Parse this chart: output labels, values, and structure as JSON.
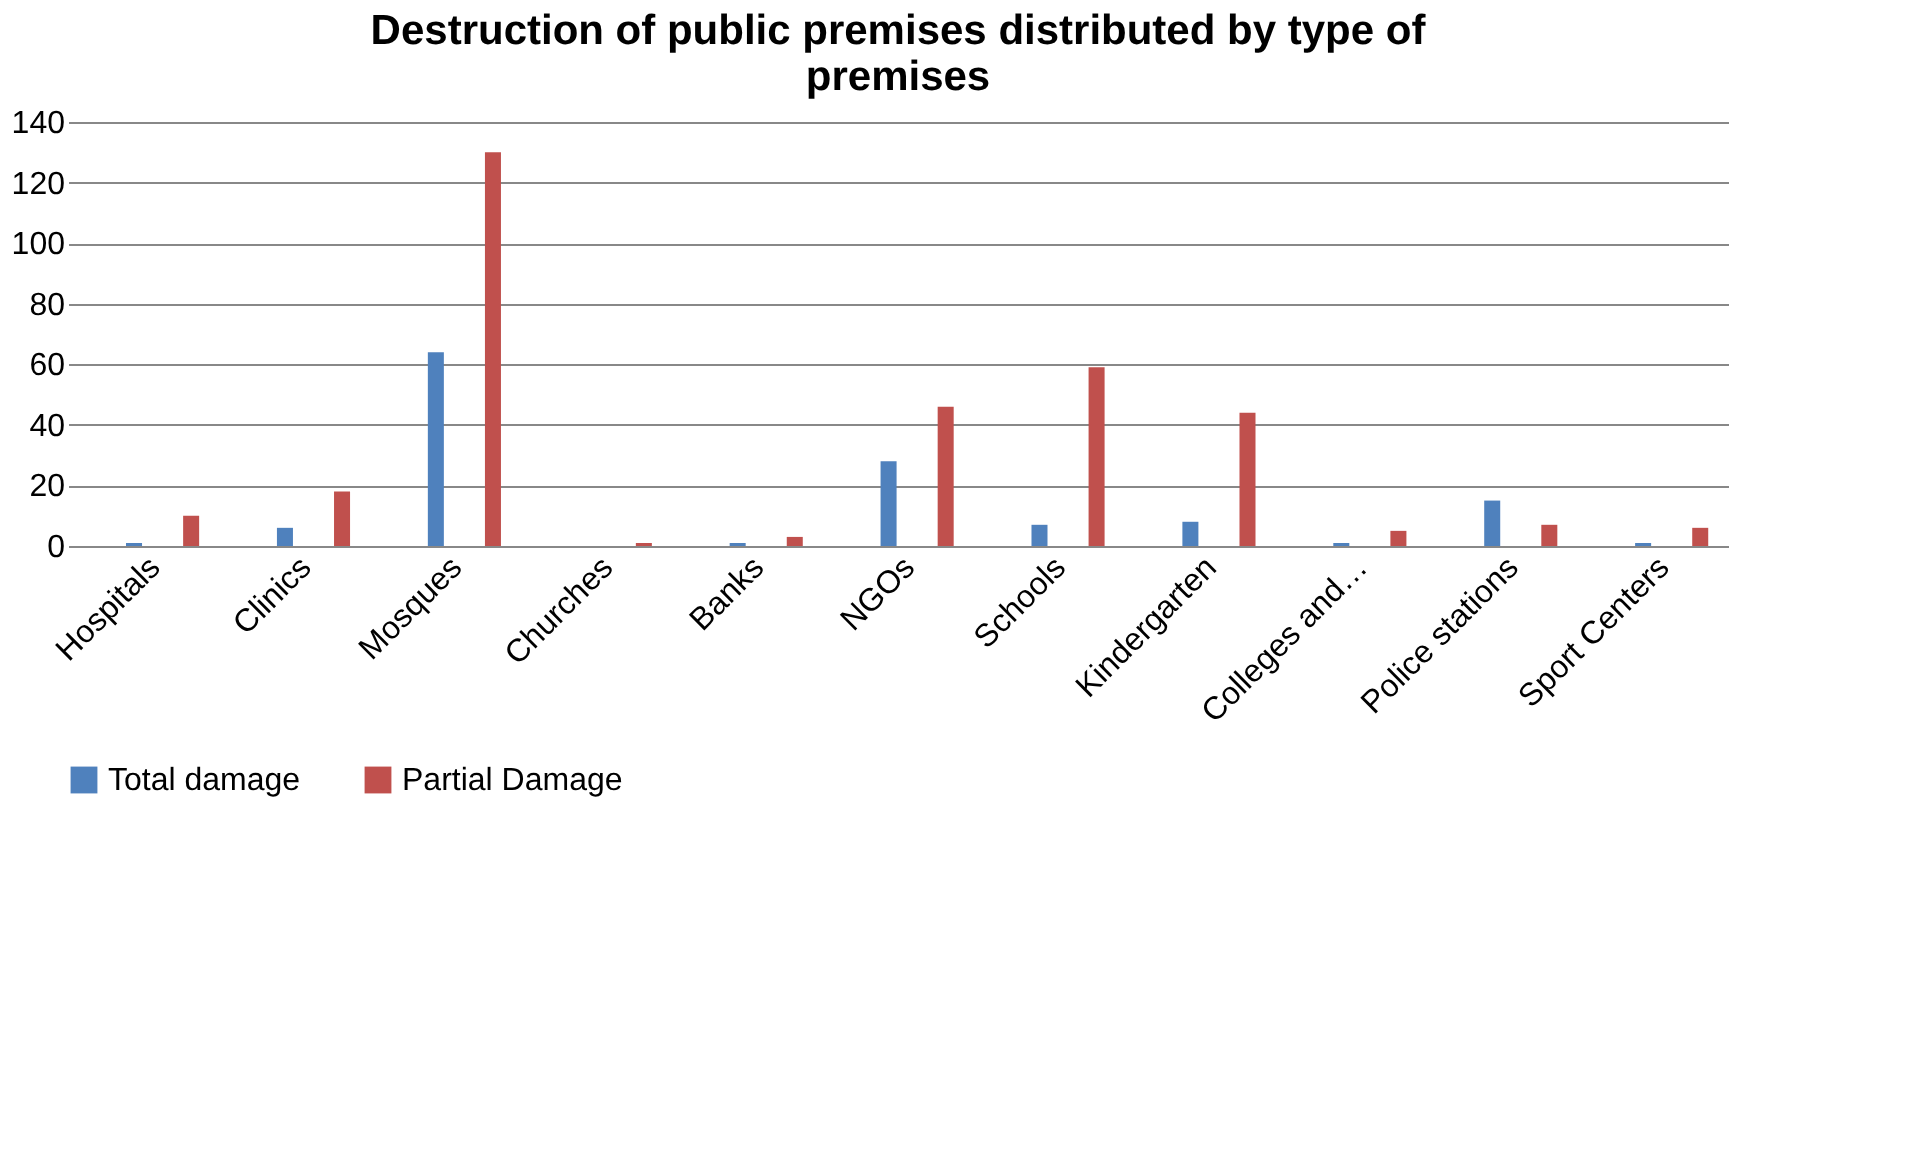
{
  "chart_data": {
    "type": "bar",
    "title": [
      "Destruction of public premises distributed by type of",
      "premises"
    ],
    "categories": [
      "Hospitals",
      "Clinics",
      "Mosques",
      "Churches",
      "Banks",
      "NGOs",
      "Schools",
      "Kindergarten",
      "Colleges and…",
      "Police stations",
      "Sport Centers"
    ],
    "series": [
      {
        "name": "Total damage",
        "color": "#4f81bd",
        "values": [
          1,
          6,
          64,
          0,
          1,
          28,
          7,
          8,
          1,
          15,
          1
        ]
      },
      {
        "name": "Partial Damage",
        "color": "#c0504d",
        "values": [
          10,
          18,
          130,
          1,
          3,
          46,
          59,
          44,
          5,
          7,
          6
        ]
      }
    ],
    "ylim": [
      0,
      140
    ],
    "yticks": [
      0,
      20,
      40,
      60,
      80,
      100,
      120,
      140
    ],
    "grid": "y",
    "legend": "bottom"
  }
}
